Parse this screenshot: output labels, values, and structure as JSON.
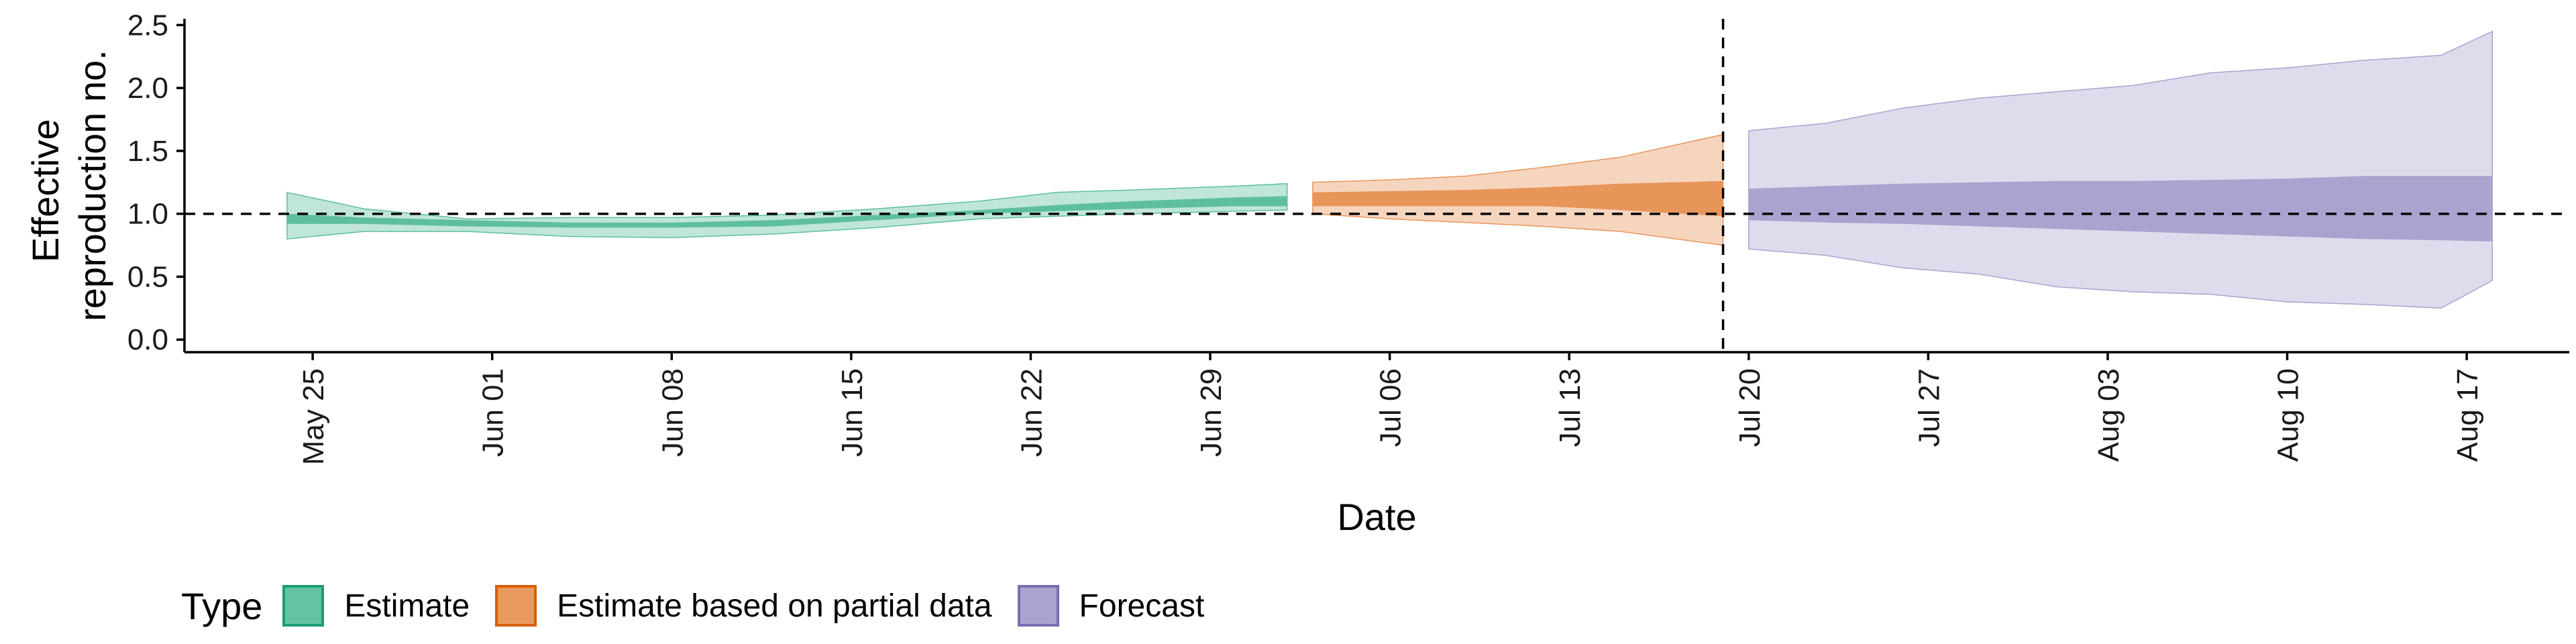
{
  "chart_data": {
    "type": "area",
    "xlabel": "Date",
    "ylabel_lines": [
      "Effective",
      "reproduction no."
    ],
    "ylim": [
      -0.1,
      2.55
    ],
    "xlim": [
      "2020-05-20",
      "2020-08-21"
    ],
    "y_ticks": [
      0.0,
      0.5,
      1.0,
      1.5,
      2.0,
      2.5
    ],
    "y_tick_labels": [
      "0.0",
      "0.5",
      "1.0",
      "1.5",
      "2.0",
      "2.5"
    ],
    "x_ticks": [
      "2020-05-25",
      "2020-06-01",
      "2020-06-08",
      "2020-06-15",
      "2020-06-22",
      "2020-06-29",
      "2020-07-06",
      "2020-07-13",
      "2020-07-20",
      "2020-07-27",
      "2020-08-03",
      "2020-08-10",
      "2020-08-17"
    ],
    "x_tick_labels": [
      "May 25",
      "Jun 01",
      "Jun 08",
      "Jun 15",
      "Jun 22",
      "Jun 29",
      "Jul 06",
      "Jul 13",
      "Jul 20",
      "Jul 27",
      "Aug 03",
      "Aug 10",
      "Aug 17"
    ],
    "reference_line_y": 1.0,
    "vertical_line_x": "2020-07-19",
    "grid": false,
    "legend": {
      "title": "Type",
      "placement": "bottom",
      "items": [
        {
          "label": "Estimate",
          "fill": "#66c2a5",
          "border": "#1b9e77"
        },
        {
          "label": "Estimate based on partial data",
          "fill": "#e99a5f",
          "border": "#d95f02"
        },
        {
          "label": "Forecast",
          "fill": "#a8a4cf",
          "border": "#7570b3"
        }
      ]
    },
    "series": [
      {
        "name": "Estimate",
        "color_inner": "#5fbf9c",
        "color_outer": "#bfe6d7",
        "x": [
          "2020-05-24",
          "2020-05-27",
          "2020-05-31",
          "2020-06-04",
          "2020-06-08",
          "2020-06-12",
          "2020-06-16",
          "2020-06-20",
          "2020-06-23",
          "2020-06-26",
          "2020-06-30",
          "2020-07-02"
        ],
        "lower_outer": [
          0.8,
          0.86,
          0.86,
          0.82,
          0.81,
          0.84,
          0.89,
          0.96,
          0.98,
          1.0,
          1.02,
          1.03
        ],
        "upper_outer": [
          1.17,
          1.04,
          0.96,
          0.97,
          0.97,
          0.99,
          1.04,
          1.1,
          1.17,
          1.19,
          1.22,
          1.24
        ],
        "lower_inner": [
          0.92,
          0.92,
          0.9,
          0.89,
          0.89,
          0.9,
          0.95,
          1.0,
          1.02,
          1.04,
          1.06,
          1.06
        ],
        "upper_inner": [
          1.0,
          0.97,
          0.95,
          0.93,
          0.93,
          0.95,
          0.99,
          1.03,
          1.07,
          1.1,
          1.13,
          1.14
        ]
      },
      {
        "name": "Estimate based on partial data",
        "color_inner": "#e8955a",
        "color_outer": "#f6d5bf",
        "x": [
          "2020-07-03",
          "2020-07-06",
          "2020-07-09",
          "2020-07-12",
          "2020-07-15",
          "2020-07-19"
        ],
        "lower_outer": [
          1.0,
          0.96,
          0.93,
          0.9,
          0.86,
          0.75
        ],
        "upper_outer": [
          1.25,
          1.27,
          1.3,
          1.37,
          1.45,
          1.63
        ],
        "lower_inner": [
          1.06,
          1.06,
          1.06,
          1.06,
          1.03,
          0.98
        ],
        "upper_inner": [
          1.17,
          1.18,
          1.19,
          1.21,
          1.24,
          1.26
        ]
      },
      {
        "name": "Forecast",
        "color_inner": "#a8a4cf",
        "color_outer": "#dddcec",
        "x": [
          "2020-07-20",
          "2020-07-23",
          "2020-07-26",
          "2020-07-29",
          "2020-08-01",
          "2020-08-04",
          "2020-08-07",
          "2020-08-10",
          "2020-08-13",
          "2020-08-16",
          "2020-08-18"
        ],
        "lower_outer": [
          0.72,
          0.67,
          0.57,
          0.52,
          0.42,
          0.38,
          0.36,
          0.3,
          0.28,
          0.25,
          0.47
        ],
        "upper_outer": [
          1.66,
          1.72,
          1.84,
          1.92,
          1.97,
          2.02,
          2.12,
          2.16,
          2.22,
          2.26,
          2.45
        ],
        "lower_inner": [
          0.95,
          0.93,
          0.92,
          0.9,
          0.88,
          0.86,
          0.84,
          0.82,
          0.8,
          0.79,
          0.78
        ],
        "upper_inner": [
          1.2,
          1.22,
          1.24,
          1.25,
          1.26,
          1.26,
          1.27,
          1.28,
          1.3,
          1.3,
          1.3
        ]
      }
    ]
  }
}
